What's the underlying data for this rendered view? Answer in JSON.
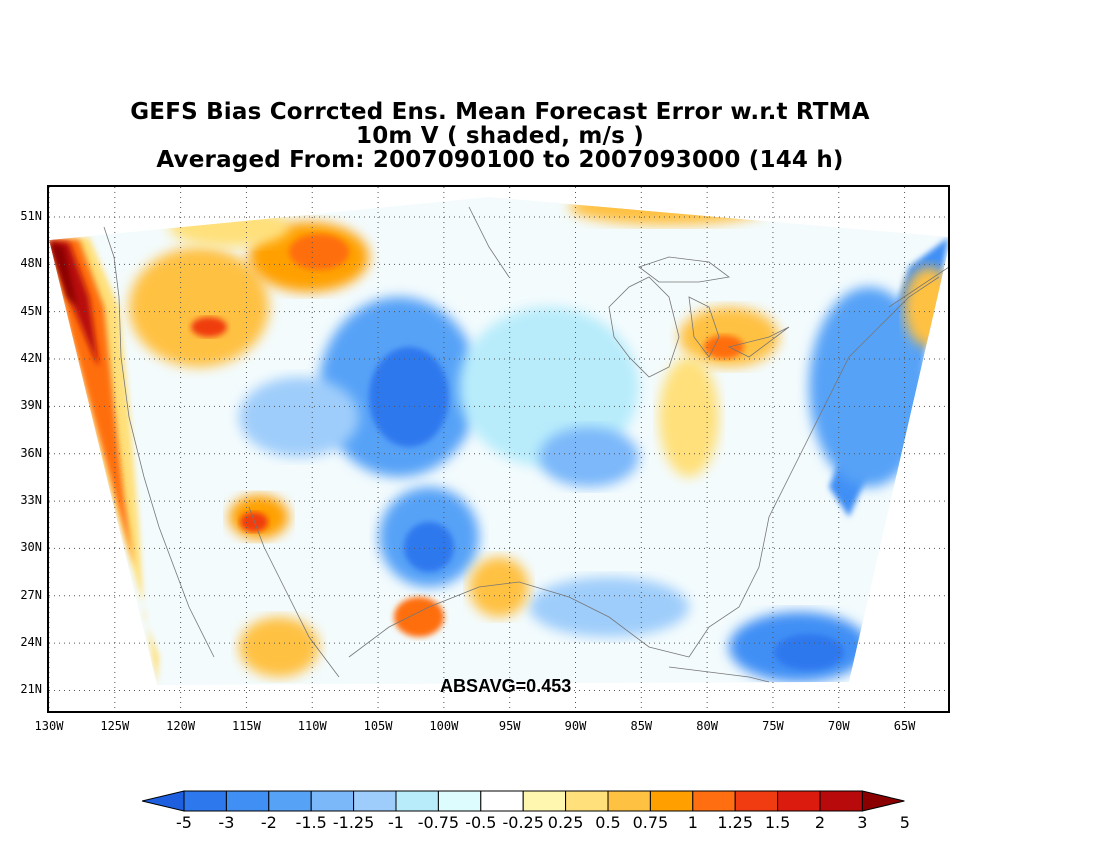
{
  "title": {
    "line1": "GEFS Bias Corrcted Ens. Mean Forecast Error w.r.t RTMA",
    "line2": "10m V ( shaded, m/s )",
    "line3": "Averaged From: 2007090100 to 2007093000 (144 h)"
  },
  "stat": "ABSAVG=0.453",
  "map": {
    "lat_labels": [
      "51N",
      "48N",
      "45N",
      "42N",
      "39N",
      "36N",
      "33N",
      "30N",
      "27N",
      "24N",
      "21N"
    ],
    "lat_values": [
      51,
      48,
      45,
      42,
      39,
      36,
      33,
      30,
      27,
      24,
      21
    ],
    "lon_labels": [
      "130W",
      "125W",
      "120W",
      "115W",
      "110W",
      "105W",
      "100W",
      "95W",
      "90W",
      "85W",
      "80W",
      "75W",
      "70W",
      "65W"
    ],
    "lon_values": [
      -130,
      -125,
      -120,
      -115,
      -110,
      -105,
      -100,
      -95,
      -90,
      -85,
      -80,
      -75,
      -70,
      -65
    ],
    "lat_range": [
      19.7,
      52.9
    ],
    "lon_range": [
      -130,
      -61.7
    ],
    "grid": "dotted",
    "field_regions": [
      {
        "desc": "pacific-coast-strong-positive",
        "value": 3
      },
      {
        "desc": "northwest-positive",
        "value": 1
      },
      {
        "desc": "rockies-negative",
        "value": -1.5
      },
      {
        "desc": "plains-negative",
        "value": -1
      },
      {
        "desc": "atlantic-negative",
        "value": -1.5
      },
      {
        "desc": "caribbean-negative",
        "value": -1.5
      },
      {
        "desc": "great-lakes-positive",
        "value": 1
      }
    ]
  },
  "colorbar": {
    "levels": [
      "-5",
      "-3",
      "-2",
      "-1.5",
      "-1.25",
      "-1",
      "-0.75",
      "-0.5",
      "-0.25",
      "0.25",
      "0.5",
      "0.75",
      "1",
      "1.25",
      "1.5",
      "2",
      "3",
      "5"
    ],
    "colors": [
      "#1e5fe0",
      "#2e78ee",
      "#3f8ff5",
      "#56a2f7",
      "#7bb8fa",
      "#9fcdfb",
      "#b8ecfb",
      "#dcfcfd",
      "#ffffff",
      "#fff7b0",
      "#ffe07a",
      "#ffc142",
      "#ffa000",
      "#ff6e10",
      "#f03c10",
      "#db1b0d",
      "#b80a0a",
      "#8a0000"
    ]
  },
  "colors": {
    "frame": "#000000",
    "grid": "#555555",
    "coast": "#777777"
  }
}
